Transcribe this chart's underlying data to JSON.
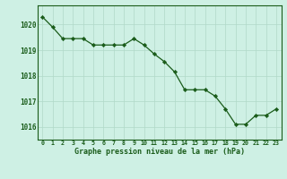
{
  "x": [
    0,
    1,
    2,
    3,
    4,
    5,
    6,
    7,
    8,
    9,
    10,
    11,
    12,
    13,
    14,
    15,
    16,
    17,
    18,
    19,
    20,
    21,
    22,
    23
  ],
  "y": [
    1020.3,
    1019.9,
    1019.45,
    1019.45,
    1019.45,
    1019.2,
    1019.2,
    1019.2,
    1019.2,
    1019.45,
    1019.2,
    1018.85,
    1018.55,
    1018.15,
    1017.45,
    1017.45,
    1017.45,
    1017.2,
    1016.7,
    1016.1,
    1016.1,
    1016.45,
    1016.45,
    1016.7
  ],
  "line_color": "#1a5c1a",
  "marker_color": "#1a5c1a",
  "bg_color": "#cef0e4",
  "grid_color": "#b0d8c8",
  "tick_color": "#1a5c1a",
  "label_color": "#1a5c1a",
  "xlabel": "Graphe pression niveau de la mer (hPa)",
  "ylim_min": 1015.5,
  "ylim_max": 1020.75,
  "yticks": [
    1016,
    1017,
    1018,
    1019,
    1020
  ],
  "xticks": [
    0,
    1,
    2,
    3,
    4,
    5,
    6,
    7,
    8,
    9,
    10,
    11,
    12,
    13,
    14,
    15,
    16,
    17,
    18,
    19,
    20,
    21,
    22,
    23
  ],
  "xtick_labels": [
    "0",
    "1",
    "2",
    "3",
    "4",
    "5",
    "6",
    "7",
    "8",
    "9",
    "10",
    "11",
    "12",
    "13",
    "14",
    "15",
    "16",
    "17",
    "18",
    "19",
    "20",
    "21",
    "22",
    "23"
  ]
}
